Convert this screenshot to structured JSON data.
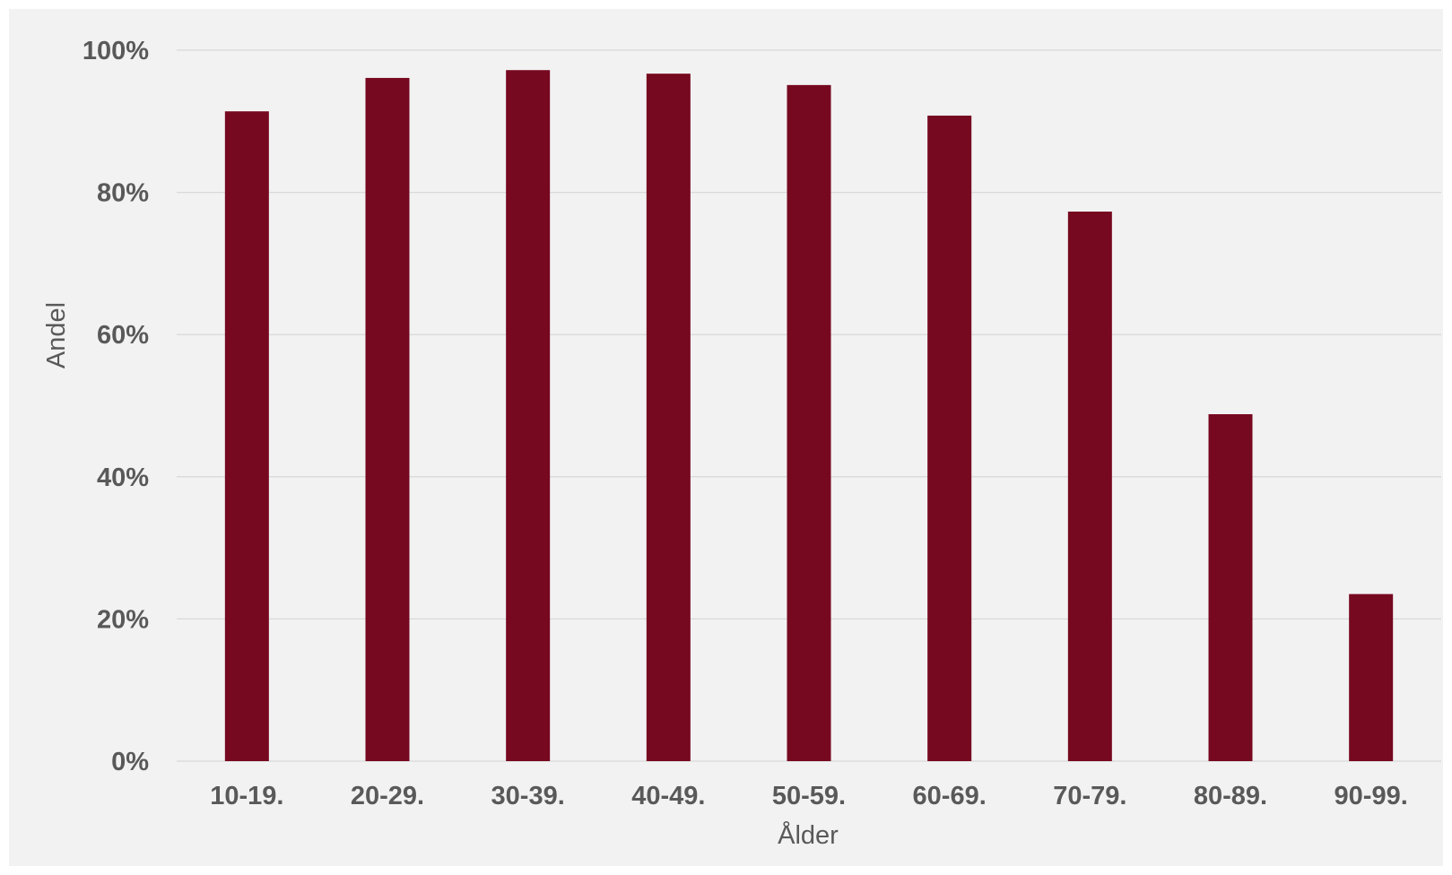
{
  "chart_data": {
    "type": "bar",
    "categories": [
      "10-19.",
      "20-29.",
      "30-39.",
      "40-49.",
      "50-59.",
      "60-69.",
      "70-79.",
      "80-89.",
      "90-99."
    ],
    "values": [
      91.4,
      96.1,
      97.2,
      96.7,
      95.1,
      90.8,
      77.3,
      48.8,
      23.5
    ],
    "xlabel": "Ålder",
    "ylabel": "Andel",
    "ylim": [
      0,
      100
    ],
    "yticks": [
      "0%",
      "20%",
      "40%",
      "60%",
      "80%",
      "100%"
    ],
    "grid": true,
    "legend": "none",
    "colors": {
      "bar": "#760820",
      "background": "#f2f2f2",
      "gridline": "#d9d9d9",
      "text": "#595959"
    }
  }
}
